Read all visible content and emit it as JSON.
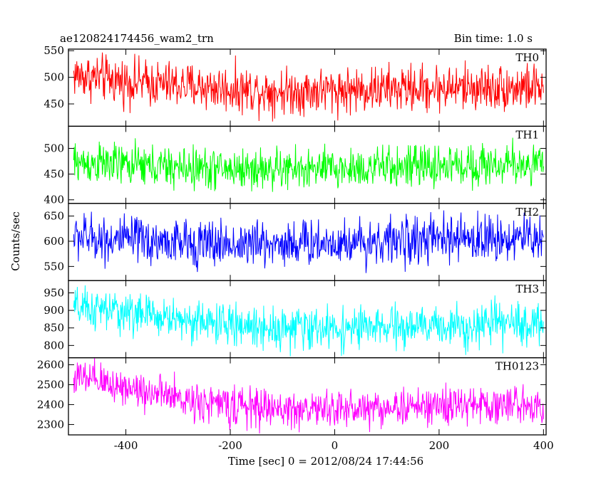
{
  "header": {
    "title": "ae120824174456_wam2_trn",
    "bin_time": "Bin time: 1.0 s"
  },
  "chart_data": {
    "type": "line",
    "xlabel": "Time [sec] 0 = 2012/08/24 17:44:56",
    "ylabel": "Counts/sec",
    "xlim": [
      -510,
      405
    ],
    "xticks": [
      -400,
      -200,
      0,
      200,
      400
    ],
    "bin_seconds": 1.0,
    "grid": false,
    "panels": [
      {
        "name": "TH0",
        "color": "#ff0000",
        "ylim": [
          408,
          553
        ],
        "yticks": [
          450,
          500,
          550
        ],
        "trend": [
          [
            -500,
            505
          ],
          [
            -400,
            492
          ],
          [
            -300,
            485
          ],
          [
            -200,
            478
          ],
          [
            -100,
            474
          ],
          [
            0,
            476
          ],
          [
            100,
            478
          ],
          [
            200,
            480
          ],
          [
            300,
            481
          ],
          [
            400,
            481
          ]
        ],
        "noise_amplitude": 28
      },
      {
        "name": "TH1",
        "color": "#00ff00",
        "ylim": [
          393,
          543
        ],
        "yticks": [
          400,
          450,
          500
        ],
        "trend": [
          [
            -500,
            472
          ],
          [
            -400,
            468
          ],
          [
            -300,
            462
          ],
          [
            -200,
            460
          ],
          [
            -100,
            459
          ],
          [
            0,
            460
          ],
          [
            100,
            463
          ],
          [
            200,
            466
          ],
          [
            300,
            468
          ],
          [
            400,
            470
          ]
        ],
        "noise_amplitude": 26
      },
      {
        "name": "TH2",
        "color": "#0000ff",
        "ylim": [
          522,
          675
        ],
        "yticks": [
          550,
          600,
          650
        ],
        "trend": [
          [
            -500,
            610
          ],
          [
            -400,
            602
          ],
          [
            -300,
            597
          ],
          [
            -200,
            594
          ],
          [
            -100,
            596
          ],
          [
            0,
            598
          ],
          [
            100,
            600
          ],
          [
            200,
            603
          ],
          [
            300,
            606
          ],
          [
            400,
            608
          ]
        ],
        "noise_amplitude": 30
      },
      {
        "name": "TH3",
        "color": "#00ffff",
        "ylim": [
          765,
          985
        ],
        "yticks": [
          800,
          850,
          900,
          950
        ],
        "trend": [
          [
            -500,
            905
          ],
          [
            -400,
            895
          ],
          [
            -300,
            875
          ],
          [
            -200,
            858
          ],
          [
            -100,
            850
          ],
          [
            0,
            848
          ],
          [
            100,
            850
          ],
          [
            200,
            855
          ],
          [
            300,
            860
          ],
          [
            400,
            862
          ]
        ],
        "noise_amplitude": 38
      },
      {
        "name": "TH0123",
        "color": "#ff00ff",
        "ylim": [
          2248,
          2635
        ],
        "yticks": [
          2300,
          2400,
          2500,
          2600
        ],
        "trend": [
          [
            -500,
            2535
          ],
          [
            -400,
            2490
          ],
          [
            -300,
            2430
          ],
          [
            -200,
            2395
          ],
          [
            -100,
            2375
          ],
          [
            0,
            2378
          ],
          [
            100,
            2385
          ],
          [
            200,
            2392
          ],
          [
            300,
            2398
          ],
          [
            400,
            2402
          ]
        ],
        "noise_amplitude": 62
      }
    ]
  }
}
